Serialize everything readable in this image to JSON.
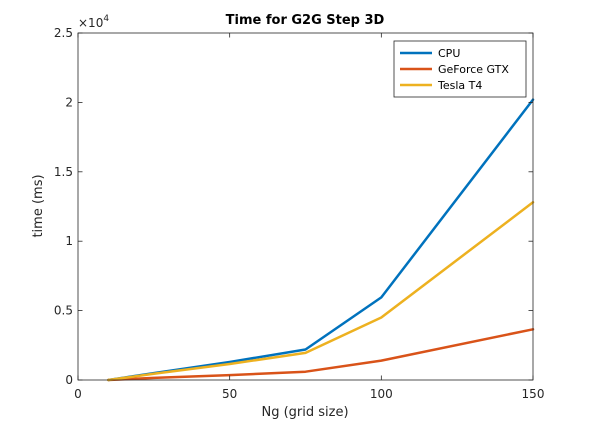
{
  "chart_data": {
    "type": "line",
    "title": "Time for G2G Step 3D",
    "xlabel": "Ng (grid size)",
    "ylabel": "time (ms)",
    "xlim": [
      0,
      150
    ],
    "ylim": [
      0,
      25000
    ],
    "xticks": [
      0,
      50,
      100,
      150
    ],
    "xtick_labels": [
      "0",
      "50",
      "100",
      "150"
    ],
    "yticks": [
      0,
      5000,
      10000,
      15000,
      20000,
      25000
    ],
    "ytick_labels": [
      "0",
      "0.5",
      "1",
      "1.5",
      "2",
      "2.5"
    ],
    "y_exponent_base": "×10",
    "y_exponent_power": "4",
    "legend_position": "top-right",
    "grid": false,
    "x": [
      10,
      25,
      50,
      75,
      100,
      150
    ],
    "series": [
      {
        "name": "CPU",
        "color": "#0072BD",
        "values": [
          0,
          500,
          1300,
          2200,
          5950,
          20200
        ]
      },
      {
        "name": "GeForce GTX",
        "color": "#D95319",
        "values": [
          0,
          150,
          350,
          600,
          1400,
          3650
        ]
      },
      {
        "name": "Tesla T4",
        "color": "#EDB120",
        "values": [
          0,
          450,
          1150,
          1950,
          4500,
          12800
        ]
      }
    ]
  }
}
